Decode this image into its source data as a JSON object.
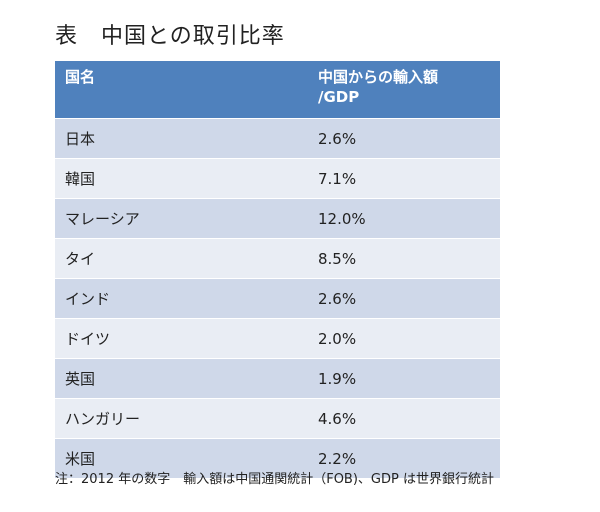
{
  "title": "表　中国との取引比率",
  "table": {
    "headers": [
      "国名",
      "中国からの輸入額\n/GDP"
    ],
    "rows": [
      {
        "country": "日本",
        "ratio": "2.6%"
      },
      {
        "country": "韓国",
        "ratio": "7.1%"
      },
      {
        "country": "マレーシア",
        "ratio": "12.0%"
      },
      {
        "country": "タイ",
        "ratio": "8.5%"
      },
      {
        "country": "インド",
        "ratio": "2.6%"
      },
      {
        "country": "ドイツ",
        "ratio": "2.0%"
      },
      {
        "country": "英国",
        "ratio": "1.9%"
      },
      {
        "country": "ハンガリー",
        "ratio": "4.6%"
      },
      {
        "country": "米国",
        "ratio": "2.2%"
      }
    ]
  },
  "note": "注：2012 年の数字　輸入額は中国通関統計（FOB)、GDP は世界銀行統計",
  "colors": {
    "header_bg": "#4f81bd",
    "row_odd": "#cfd8e9",
    "row_even": "#e9edf4"
  }
}
